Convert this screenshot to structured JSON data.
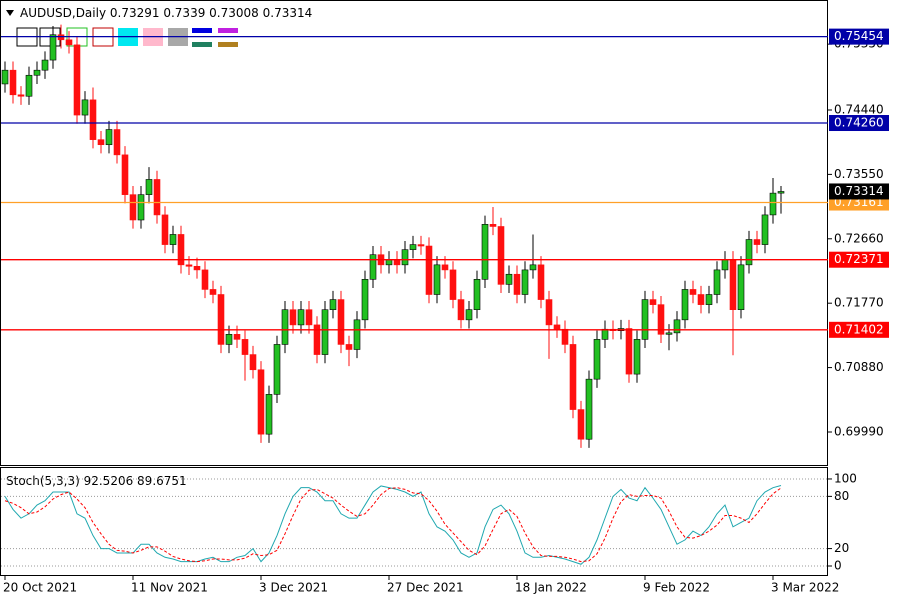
{
  "chart_data": [
    {
      "type": "candlestick",
      "title": "AUDUSD,Daily",
      "up_color": "#22c022",
      "down_color": "#ff1010",
      "ylim": [
        0.6952,
        0.7596
      ],
      "yticks": [
        {
          "value": 0.7535,
          "label": "0.75350"
        },
        {
          "value": 0.7444,
          "label": "0.74440"
        },
        {
          "value": 0.7355,
          "label": "0.73550"
        },
        {
          "value": 0.7266,
          "label": "0.72660"
        },
        {
          "value": 0.7177,
          "label": "0.71770"
        },
        {
          "value": 0.7088,
          "label": "0.70880"
        },
        {
          "value": 0.6999,
          "label": "0.69990"
        }
      ],
      "levels": [
        {
          "value": 0.75454,
          "color": "#0000a8"
        },
        {
          "value": 0.7426,
          "label": "0.74260",
          "color": "#0000a8"
        },
        {
          "value": 0.73161,
          "color": "#ffa028"
        },
        {
          "value": 0.72371,
          "color": "#ff0000"
        },
        {
          "value": 0.71402,
          "color": "#ff0000"
        }
      ],
      "categories": [
        "20 Oct 2021",
        null,
        null,
        null,
        null,
        null,
        null,
        null,
        null,
        null,
        null,
        null,
        null,
        null,
        null,
        null,
        "11 Nov 2021",
        null,
        null,
        null,
        null,
        null,
        null,
        null,
        null,
        null,
        null,
        null,
        null,
        null,
        null,
        null,
        "3 Dec 2021",
        null,
        null,
        null,
        null,
        null,
        null,
        null,
        null,
        null,
        null,
        null,
        null,
        null,
        null,
        null,
        "27 Dec 2021",
        null,
        null,
        null,
        null,
        null,
        null,
        null,
        null,
        null,
        null,
        null,
        null,
        null,
        null,
        null,
        "18 Jan 2022",
        null,
        null,
        null,
        null,
        null,
        null,
        null,
        null,
        null,
        null,
        null,
        null,
        null,
        null,
        null,
        "9 Feb 2022",
        null,
        null,
        null,
        null,
        null,
        null,
        null,
        null,
        null,
        null,
        null,
        null,
        null,
        null,
        null,
        "3 Mar 2022",
        null
      ],
      "open": [
        0.748,
        0.7499,
        0.7465,
        0.7463,
        0.7492,
        0.7499,
        0.7513,
        0.7548,
        0.7541,
        0.7534,
        0.7437,
        0.7458,
        0.7403,
        0.7396,
        0.7417,
        0.7382,
        0.7327,
        0.7292,
        0.7327,
        0.7348,
        0.7299,
        0.7258,
        0.7272,
        0.723,
        0.7228,
        0.7223,
        0.7196,
        0.7189,
        0.712,
        0.7134,
        0.7127,
        0.7106,
        0.7085,
        0.6996,
        0.7051,
        0.712,
        0.7168,
        0.7147,
        0.7168,
        0.7147,
        0.7106,
        0.7168,
        0.7182,
        0.712,
        0.7113,
        0.7154,
        0.721,
        0.7244,
        0.723,
        0.7237,
        0.723,
        0.7251,
        0.7258,
        0.7256,
        0.7189,
        0.723,
        0.7223,
        0.7182,
        0.7154,
        0.7168,
        0.721,
        0.7286,
        0.7283,
        0.7203,
        0.7217,
        0.7189,
        0.7223,
        0.723,
        0.7182,
        0.7147,
        0.7141,
        0.712,
        0.703,
        0.6989,
        0.7072,
        0.7127,
        0.7141,
        0.7139,
        0.7142,
        0.7079,
        0.7127,
        0.7182,
        0.7175,
        0.7134,
        0.7136,
        0.7154,
        0.7196,
        0.7189,
        0.7175,
        0.7189,
        0.7223,
        0.7237,
        0.7168,
        0.723,
        0.7265,
        0.7258,
        0.7299,
        0.73291
      ],
      "high": [
        0.7511,
        0.7511,
        0.7477,
        0.7504,
        0.7511,
        0.7525,
        0.756,
        0.7562,
        0.7553,
        0.7546,
        0.747,
        0.7475,
        0.7415,
        0.7429,
        0.7429,
        0.7394,
        0.7339,
        0.7339,
        0.7365,
        0.736,
        0.7311,
        0.7284,
        0.7284,
        0.7242,
        0.724,
        0.7235,
        0.7208,
        0.7201,
        0.7146,
        0.7146,
        0.7139,
        0.7118,
        0.7097,
        0.7063,
        0.7132,
        0.718,
        0.718,
        0.718,
        0.718,
        0.7159,
        0.718,
        0.7194,
        0.7194,
        0.7132,
        0.7166,
        0.7222,
        0.7256,
        0.7256,
        0.7249,
        0.7249,
        0.7263,
        0.727,
        0.727,
        0.7268,
        0.7242,
        0.7242,
        0.7235,
        0.7194,
        0.718,
        0.7222,
        0.7298,
        0.731,
        0.7295,
        0.7229,
        0.7229,
        0.7235,
        0.7272,
        0.7242,
        0.7194,
        0.7159,
        0.7153,
        0.7132,
        0.7042,
        0.7084,
        0.7139,
        0.7153,
        0.7153,
        0.7154,
        0.7154,
        0.7139,
        0.7194,
        0.7194,
        0.7187,
        0.7148,
        0.7166,
        0.7208,
        0.7208,
        0.7201,
        0.7201,
        0.7235,
        0.7249,
        0.7249,
        0.7242,
        0.7277,
        0.7277,
        0.7311,
        0.735,
        0.7339
      ],
      "low": [
        0.7468,
        0.7453,
        0.7451,
        0.7451,
        0.748,
        0.7487,
        0.7501,
        0.7529,
        0.7522,
        0.7425,
        0.7425,
        0.7391,
        0.7384,
        0.7384,
        0.737,
        0.7315,
        0.728,
        0.728,
        0.7315,
        0.7287,
        0.7246,
        0.7246,
        0.7218,
        0.7216,
        0.7211,
        0.7184,
        0.7177,
        0.7108,
        0.7108,
        0.7115,
        0.707,
        0.7073,
        0.6984,
        0.6984,
        0.7039,
        0.7108,
        0.7135,
        0.7135,
        0.7135,
        0.7094,
        0.7094,
        0.7156,
        0.7108,
        0.709,
        0.7101,
        0.7142,
        0.7198,
        0.7218,
        0.7218,
        0.7218,
        0.7218,
        0.7239,
        0.7244,
        0.7177,
        0.7177,
        0.7211,
        0.717,
        0.7142,
        0.7142,
        0.7156,
        0.7198,
        0.7271,
        0.7191,
        0.7191,
        0.7177,
        0.7177,
        0.7211,
        0.717,
        0.71,
        0.7129,
        0.7108,
        0.7018,
        0.6977,
        0.6977,
        0.706,
        0.7115,
        0.7127,
        0.7127,
        0.7067,
        0.7067,
        0.7115,
        0.7163,
        0.7122,
        0.7112,
        0.7124,
        0.7142,
        0.7177,
        0.7163,
        0.7163,
        0.7177,
        0.7211,
        0.7105,
        0.7156,
        0.7218,
        0.7246,
        0.7246,
        0.7287,
        0.73008
      ],
      "close": [
        0.7499,
        0.7465,
        0.7463,
        0.7492,
        0.7499,
        0.7513,
        0.7548,
        0.7541,
        0.7534,
        0.7437,
        0.7458,
        0.7403,
        0.7396,
        0.7417,
        0.7382,
        0.7327,
        0.7292,
        0.7327,
        0.7348,
        0.7299,
        0.7258,
        0.7272,
        0.723,
        0.7228,
        0.7223,
        0.7196,
        0.7189,
        0.712,
        0.7134,
        0.7127,
        0.7106,
        0.7085,
        0.6996,
        0.7051,
        0.712,
        0.7168,
        0.7147,
        0.7168,
        0.7147,
        0.7106,
        0.7168,
        0.7182,
        0.712,
        0.7113,
        0.7154,
        0.721,
        0.7244,
        0.723,
        0.7237,
        0.723,
        0.7251,
        0.7258,
        0.7256,
        0.7189,
        0.723,
        0.7223,
        0.7182,
        0.7154,
        0.7168,
        0.721,
        0.7286,
        0.7283,
        0.7203,
        0.7217,
        0.7189,
        0.7223,
        0.723,
        0.7182,
        0.7147,
        0.7141,
        0.712,
        0.703,
        0.6989,
        0.7072,
        0.7127,
        0.7141,
        0.7139,
        0.7142,
        0.7079,
        0.7127,
        0.7182,
        0.7175,
        0.7134,
        0.7136,
        0.7154,
        0.7196,
        0.7189,
        0.7175,
        0.7189,
        0.7223,
        0.7237,
        0.7168,
        0.723,
        0.7265,
        0.7258,
        0.7299,
        0.73291,
        0.73314
      ]
    },
    {
      "type": "line",
      "title": "Stoch(5,3,3)",
      "ylim": [
        -11.5,
        112.6
      ],
      "yticks": [
        100,
        80,
        20,
        0
      ],
      "grid": true,
      "series": [
        {
          "color": "#20a8b0",
          "dash": false,
          "values": [
            80,
            65,
            55,
            60,
            70,
            75,
            85,
            85,
            85,
            60,
            55,
            35,
            20,
            20,
            15,
            15,
            15,
            25,
            25,
            15,
            10,
            8,
            5,
            5,
            5,
            8,
            10,
            5,
            5,
            10,
            12,
            20,
            5,
            15,
            35,
            60,
            80,
            90,
            90,
            85,
            75,
            75,
            60,
            55,
            55,
            70,
            85,
            92,
            90,
            88,
            85,
            80,
            85,
            60,
            45,
            40,
            30,
            15,
            10,
            15,
            45,
            65,
            70,
            60,
            40,
            15,
            10,
            10,
            12,
            10,
            8,
            5,
            2,
            10,
            30,
            55,
            80,
            88,
            78,
            75,
            90,
            78,
            65,
            45,
            25,
            30,
            40,
            35,
            45,
            60,
            70,
            45,
            50,
            55,
            75,
            85,
            90,
            92.5206
          ]
        },
        {
          "color": "#ff0000",
          "dash": true,
          "values": [
            75,
            72,
            67,
            60,
            62,
            68,
            77,
            82,
            85,
            77,
            67,
            50,
            37,
            25,
            18,
            17,
            15,
            18,
            22,
            22,
            17,
            11,
            8,
            6,
            5,
            6,
            8,
            8,
            7,
            7,
            9,
            14,
            12,
            13,
            18,
            37,
            58,
            77,
            87,
            88,
            83,
            78,
            70,
            63,
            57,
            60,
            70,
            82,
            89,
            90,
            88,
            84,
            83,
            75,
            63,
            48,
            38,
            28,
            18,
            13,
            23,
            42,
            60,
            65,
            57,
            38,
            22,
            12,
            11,
            11,
            10,
            8,
            5,
            6,
            14,
            32,
            55,
            74,
            82,
            80,
            81,
            81,
            78,
            63,
            45,
            33,
            32,
            35,
            40,
            47,
            58,
            58,
            55,
            50,
            60,
            72,
            83,
            89.6751
          ]
        }
      ]
    }
  ]
}
